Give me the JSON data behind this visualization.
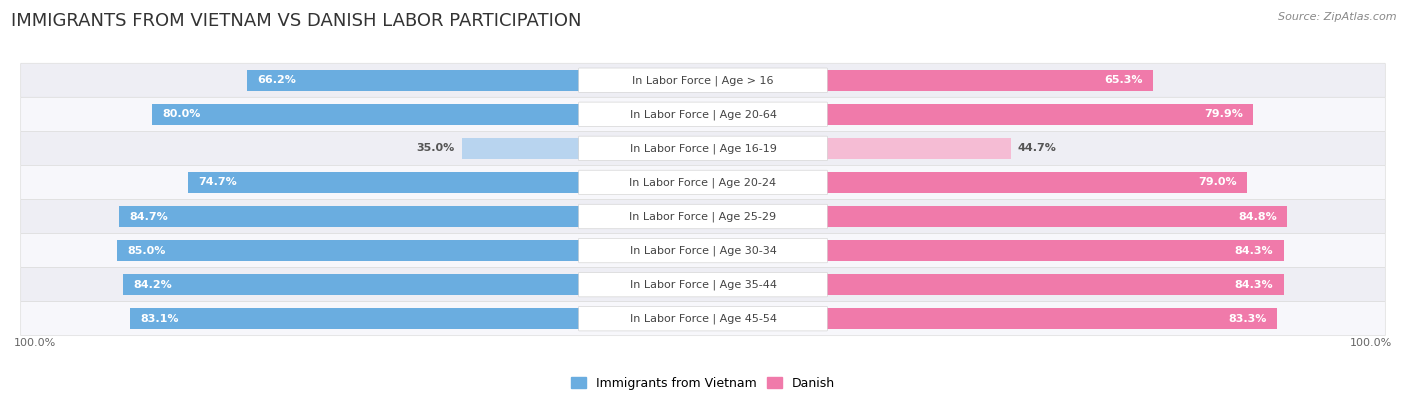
{
  "title": "IMMIGRANTS FROM VIETNAM VS DANISH LABOR PARTICIPATION",
  "source": "Source: ZipAtlas.com",
  "categories": [
    "In Labor Force | Age > 16",
    "In Labor Force | Age 20-64",
    "In Labor Force | Age 16-19",
    "In Labor Force | Age 20-24",
    "In Labor Force | Age 25-29",
    "In Labor Force | Age 30-34",
    "In Labor Force | Age 35-44",
    "In Labor Force | Age 45-54"
  ],
  "vietnam_values": [
    66.2,
    80.0,
    35.0,
    74.7,
    84.7,
    85.0,
    84.2,
    83.1
  ],
  "danish_values": [
    65.3,
    79.9,
    44.7,
    79.0,
    84.8,
    84.3,
    84.3,
    83.3
  ],
  "vietnam_color": "#6aade0",
  "vietnam_color_light": "#b8d4ef",
  "danish_color": "#f07aaa",
  "danish_color_light": "#f5bcd4",
  "row_bg_even": "#eeeef4",
  "row_bg_odd": "#f7f7fb",
  "max_value": 100.0,
  "bar_height": 0.62,
  "title_fontsize": 13,
  "label_fontsize": 8.0,
  "value_fontsize": 8.0,
  "legend_fontsize": 9,
  "source_fontsize": 8
}
